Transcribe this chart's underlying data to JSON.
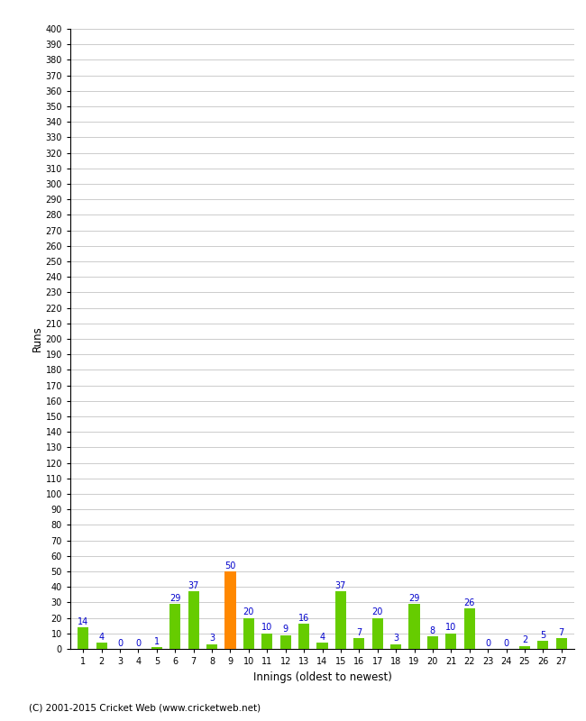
{
  "innings": [
    1,
    2,
    3,
    4,
    5,
    6,
    7,
    8,
    9,
    10,
    11,
    12,
    13,
    14,
    15,
    16,
    17,
    18,
    19,
    20,
    21,
    22,
    23,
    24,
    25,
    26,
    27
  ],
  "values": [
    14,
    4,
    0,
    0,
    1,
    29,
    37,
    3,
    50,
    20,
    10,
    9,
    16,
    4,
    37,
    7,
    20,
    3,
    29,
    8,
    10,
    26,
    0,
    0,
    2,
    5,
    7
  ],
  "bar_colors": [
    "#66cc00",
    "#66cc00",
    "#66cc00",
    "#66cc00",
    "#66cc00",
    "#66cc00",
    "#66cc00",
    "#66cc00",
    "#ff8800",
    "#66cc00",
    "#66cc00",
    "#66cc00",
    "#66cc00",
    "#66cc00",
    "#66cc00",
    "#66cc00",
    "#66cc00",
    "#66cc00",
    "#66cc00",
    "#66cc00",
    "#66cc00",
    "#66cc00",
    "#66cc00",
    "#66cc00",
    "#66cc00",
    "#66cc00",
    "#66cc00"
  ],
  "xlabel": "Innings (oldest to newest)",
  "ylabel": "Runs",
  "ylim": [
    0,
    400
  ],
  "yticks": [
    0,
    10,
    20,
    30,
    40,
    50,
    60,
    70,
    80,
    90,
    100,
    110,
    120,
    130,
    140,
    150,
    160,
    170,
    180,
    190,
    200,
    210,
    220,
    230,
    240,
    250,
    260,
    270,
    280,
    290,
    300,
    310,
    320,
    330,
    340,
    350,
    360,
    370,
    380,
    390,
    400
  ],
  "background_color": "#ffffff",
  "grid_color": "#cccccc",
  "label_color": "#0000cc",
  "footer": "(C) 2001-2015 Cricket Web (www.cricketweb.net)"
}
